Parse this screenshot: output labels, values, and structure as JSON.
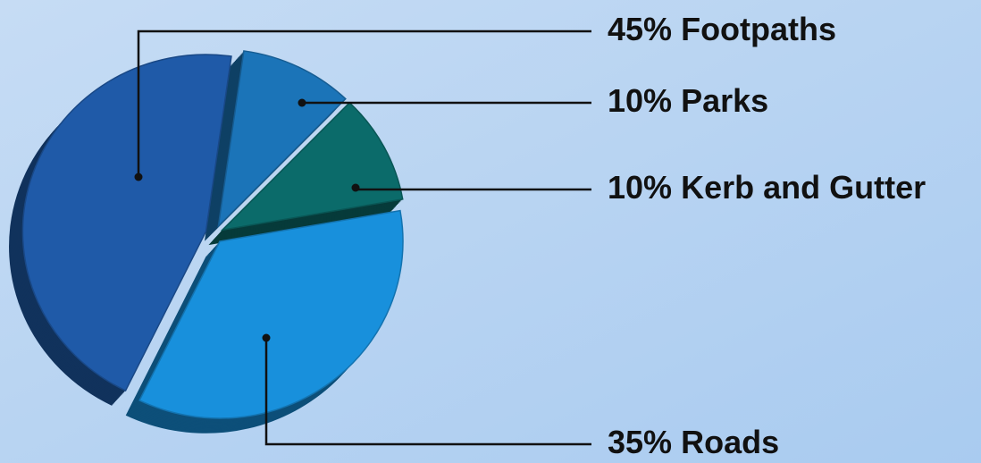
{
  "chart_data": {
    "type": "pie",
    "categories": [
      "Footpaths",
      "Parks",
      "Kerb and Gutter",
      "Roads"
    ],
    "values": [
      45,
      10,
      10,
      35
    ],
    "value_labels": [
      "45%",
      "10%",
      "10%",
      "35%"
    ],
    "colors": [
      "#1f5aa8",
      "#1b74b8",
      "#0b6b6a",
      "#1890dc"
    ]
  }
}
